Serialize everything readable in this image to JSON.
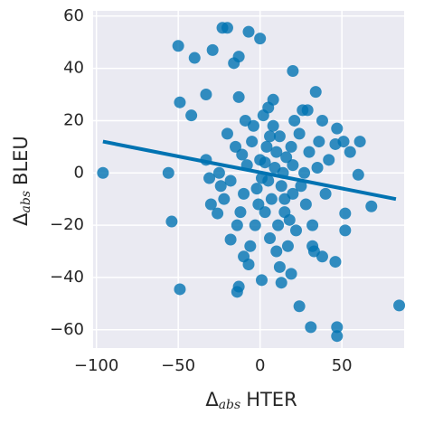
{
  "chart_data": {
    "type": "scatter",
    "xlabel": {
      "main": "Δ",
      "sub": "abs",
      "rest": "HTER"
    },
    "ylabel": {
      "main": "Δ",
      "sub": "abs",
      "rest": "BLEU"
    },
    "color": "#0173b2",
    "xlim": [
      -102,
      88
    ],
    "ylim": [
      -67,
      62
    ],
    "xticks": [
      {
        "value": -100,
        "label": "−100"
      },
      {
        "value": -50,
        "label": "−50"
      },
      0,
      50
    ],
    "yticks": [
      {
        "value": -60,
        "label": "−60"
      },
      {
        "value": -40,
        "label": "−40"
      },
      {
        "value": -20,
        "label": "−20"
      },
      0,
      20,
      40,
      60
    ],
    "grid": true,
    "x": [
      -96,
      -50,
      -40,
      -29,
      -23,
      -20,
      -7,
      0,
      -13,
      -16,
      20,
      34,
      -49,
      -42,
      -33,
      -13,
      8,
      29,
      38,
      47,
      46,
      51,
      61,
      55,
      -56,
      -54,
      -49,
      -13,
      -14,
      -10,
      1,
      13,
      19,
      24,
      31,
      47,
      47,
      85,
      68,
      60,
      52,
      52,
      46,
      38,
      32,
      -26,
      -30,
      -24,
      -18,
      -33,
      -31,
      0,
      5,
      10,
      -5,
      15,
      20,
      -10,
      3,
      8,
      -3,
      25,
      12,
      -8,
      18,
      6,
      30,
      -15,
      2,
      22,
      -12,
      14,
      28,
      -6,
      10,
      35,
      -18,
      4,
      16,
      -2,
      7,
      24,
      -20,
      32,
      11,
      -4,
      19,
      1,
      9,
      27,
      -9,
      13,
      40,
      36,
      -22,
      5,
      17,
      -1,
      21,
      -14,
      33,
      26,
      12,
      -7,
      42,
      -25,
      6,
      15,
      3,
      20,
      -11
    ],
    "values": [
      0,
      48.6,
      44,
      47,
      55.5,
      55.5,
      54,
      51.4,
      44.5,
      42,
      39,
      31,
      27,
      22,
      30,
      29,
      28,
      24,
      20,
      17,
      11,
      12,
      12,
      8,
      0,
      -18.6,
      -44.5,
      -43.5,
      -45.5,
      -32,
      -41,
      -42,
      -38.6,
      -51,
      -59,
      -59,
      -62.4,
      -50.7,
      -12.8,
      -0.7,
      -15.5,
      -22,
      -34,
      -32,
      -28,
      -15.5,
      -12,
      -5,
      -25.5,
      5,
      -2,
      5,
      -3,
      8,
      12,
      -10,
      3,
      -8,
      -15,
      18,
      -20,
      -5,
      14,
      3,
      -18,
      -25,
      8,
      10,
      22,
      -22,
      -15,
      0,
      -12,
      -28,
      -30,
      2,
      -3,
      10,
      6,
      -6,
      -10,
      15,
      15,
      -20,
      -20,
      18,
      10,
      -2,
      2,
      0,
      20,
      -5,
      -8,
      12,
      -10,
      25,
      -28,
      -12,
      20,
      -20,
      -30,
      24,
      -36,
      -35,
      5,
      0,
      14,
      -15,
      4,
      -8,
      7
    ],
    "regression": {
      "x": [
        -96,
        83
      ],
      "values": [
        12,
        -10
      ]
    }
  }
}
